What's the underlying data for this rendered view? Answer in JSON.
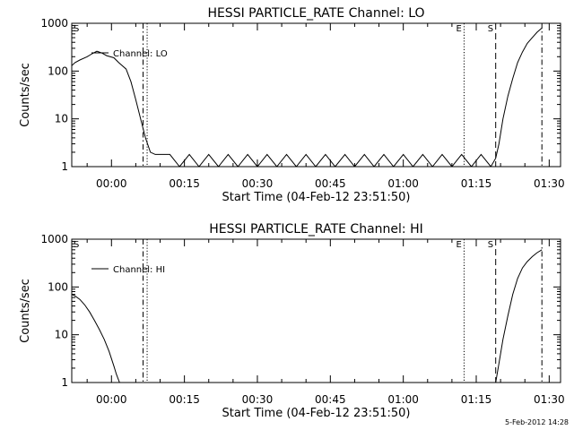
{
  "timestamp": "5-Feb-2012 14:28",
  "chart_data": [
    {
      "type": "line",
      "title": "HESSI PARTICLE_RATE Channel: LO",
      "xlabel": "Start Time (04-Feb-12 23:51:50)",
      "ylabel": "Counts/sec",
      "y_scale": "log",
      "xlim": [
        "23:51:50",
        "01:32:20"
      ],
      "ylim": [
        1,
        1000
      ],
      "x_ticks": [
        "00:00",
        "00:15",
        "00:30",
        "00:45",
        "01:00",
        "01:15",
        "01:30"
      ],
      "y_ticks": [
        "1",
        "10",
        "100",
        "1000"
      ],
      "legend": {
        "label": "Channel: LO",
        "placement": "top-left"
      },
      "markers": [
        {
          "label": "S",
          "time": "23:51:50",
          "style": "dash-dot"
        },
        {
          "label": "",
          "time": "00:06:30",
          "style": "dash-dot"
        },
        {
          "label": "",
          "time": "00:07:20",
          "style": "dotted"
        },
        {
          "label": "E",
          "time": "01:12:30",
          "style": "dotted"
        },
        {
          "label": "S",
          "time": "01:19:00",
          "style": "dashed"
        },
        {
          "label": "",
          "time": "01:28:30",
          "style": "dash-dot"
        }
      ],
      "series": [
        {
          "x": [
            "23:51:50",
            "23:52:30",
            "23:53:30",
            "23:55:00",
            "23:56:00",
            "23:57:00",
            "23:58:00",
            "23:59:00",
            "00:00:30",
            "00:01:30",
            "00:03:00",
            "00:04:00",
            "00:05:00",
            "00:06:00",
            "00:07:00",
            "00:08:00",
            "00:09:00",
            "00:10:00",
            "00:11:00",
            "00:12:00",
            "00:14:00",
            "00:16:00",
            "00:18:00",
            "00:20:00",
            "00:22:00",
            "00:24:00",
            "00:26:00",
            "00:28:00",
            "00:30:00",
            "00:32:00",
            "00:34:00",
            "00:36:00",
            "00:38:00",
            "00:40:00",
            "00:42:00",
            "00:44:00",
            "00:46:00",
            "00:48:00",
            "00:50:00",
            "00:52:00",
            "00:54:00",
            "00:56:00",
            "00:58:00",
            "01:00:00",
            "01:02:00",
            "01:04:00",
            "01:06:00",
            "01:08:00",
            "01:10:00",
            "01:12:00",
            "01:14:00",
            "01:16:00",
            "01:18:00",
            "01:19:00",
            "01:19:40",
            "01:20:30",
            "01:21:30",
            "01:22:30",
            "01:23:30",
            "01:24:30",
            "01:25:30",
            "01:26:30",
            "01:27:30",
            "01:28:30"
          ],
          "y": [
            130,
            150,
            170,
            200,
            230,
            260,
            240,
            210,
            190,
            150,
            110,
            60,
            25,
            10,
            4,
            2,
            1.8,
            1.8,
            1.8,
            1.8,
            1,
            1.8,
            1,
            1.8,
            1,
            1.8,
            1,
            1.8,
            1,
            1.8,
            1,
            1.8,
            1,
            1.8,
            1,
            1.8,
            1,
            1.8,
            1,
            1.8,
            1,
            1.8,
            1,
            1.8,
            1,
            1.8,
            1,
            1.8,
            1,
            1.8,
            1,
            1.8,
            1,
            1.5,
            3,
            10,
            30,
            70,
            150,
            250,
            380,
            500,
            650,
            800
          ]
        }
      ]
    },
    {
      "type": "line",
      "title": "HESSI PARTICLE_RATE Channel: HI",
      "xlabel": "Start Time (04-Feb-12 23:51:50)",
      "ylabel": "Counts/sec",
      "y_scale": "log",
      "xlim": [
        "23:51:50",
        "01:32:20"
      ],
      "ylim": [
        1,
        1000
      ],
      "x_ticks": [
        "00:00",
        "00:15",
        "00:30",
        "00:45",
        "01:00",
        "01:15",
        "01:30"
      ],
      "y_ticks": [
        "1",
        "10",
        "100",
        "1000"
      ],
      "legend": {
        "label": "Channel: HI",
        "placement": "top-left"
      },
      "markers": [
        {
          "label": "S",
          "time": "23:51:50",
          "style": "dash-dot"
        },
        {
          "label": "",
          "time": "00:06:30",
          "style": "dash-dot"
        },
        {
          "label": "",
          "time": "00:07:20",
          "style": "dotted"
        },
        {
          "label": "E",
          "time": "01:12:30",
          "style": "dotted"
        },
        {
          "label": "S",
          "time": "01:19:00",
          "style": "dashed"
        },
        {
          "label": "",
          "time": "01:28:30",
          "style": "dash-dot"
        }
      ],
      "series": [
        {
          "x": [
            "23:51:50",
            "23:52:30",
            "23:53:30",
            "23:54:30",
            "23:55:30",
            "23:56:30",
            "23:57:30",
            "23:58:30",
            "23:59:30",
            "00:00:30",
            "00:01:00",
            "00:01:40",
            "01:19:00",
            "01:19:40",
            "01:20:30",
            "01:21:30",
            "01:22:30",
            "01:23:30",
            "01:24:30",
            "01:25:30",
            "01:26:30",
            "01:27:30",
            "01:28:30"
          ],
          "y": [
            70,
            65,
            55,
            42,
            30,
            20,
            13,
            8,
            4.5,
            2.2,
            1.5,
            1,
            1,
            2.5,
            8,
            25,
            70,
            150,
            250,
            340,
            430,
            520,
            600
          ]
        }
      ]
    }
  ]
}
